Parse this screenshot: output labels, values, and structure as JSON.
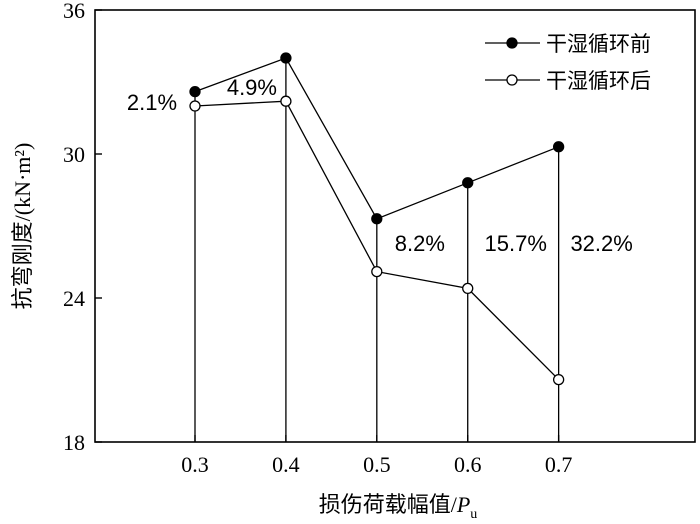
{
  "chart_data": {
    "type": "line",
    "x": [
      0.3,
      0.4,
      0.5,
      0.6,
      0.7
    ],
    "xticks": [
      "0.3",
      "0.4",
      "0.5",
      "0.6",
      "0.7"
    ],
    "xlim": [
      0.19,
      0.85
    ],
    "yticks": [
      "18",
      "24",
      "30",
      "36"
    ],
    "ylim": [
      18,
      36
    ],
    "xlabel": "损伤荷载幅值/",
    "xlabel_italic": "P",
    "xlabel_sub": "u",
    "ylabel": "抗弯刚度/(kN·m²)",
    "series": [
      {
        "name": "干湿循环前",
        "marker": "filled-circle",
        "values": [
          32.6,
          34.0,
          27.3,
          28.8,
          30.3
        ]
      },
      {
        "name": "干湿循环后",
        "marker": "open-circle",
        "values": [
          32.0,
          32.2,
          25.1,
          24.4,
          20.6
        ]
      }
    ],
    "annotations": [
      {
        "text": "2.1%",
        "x": 0.3
      },
      {
        "text": "4.9%",
        "x": 0.4
      },
      {
        "text": "8.2%",
        "x": 0.5
      },
      {
        "text": "15.7%",
        "x": 0.6
      },
      {
        "text": "32.2%",
        "x": 0.7
      }
    ],
    "legend_position": "top-right",
    "grid": false
  }
}
